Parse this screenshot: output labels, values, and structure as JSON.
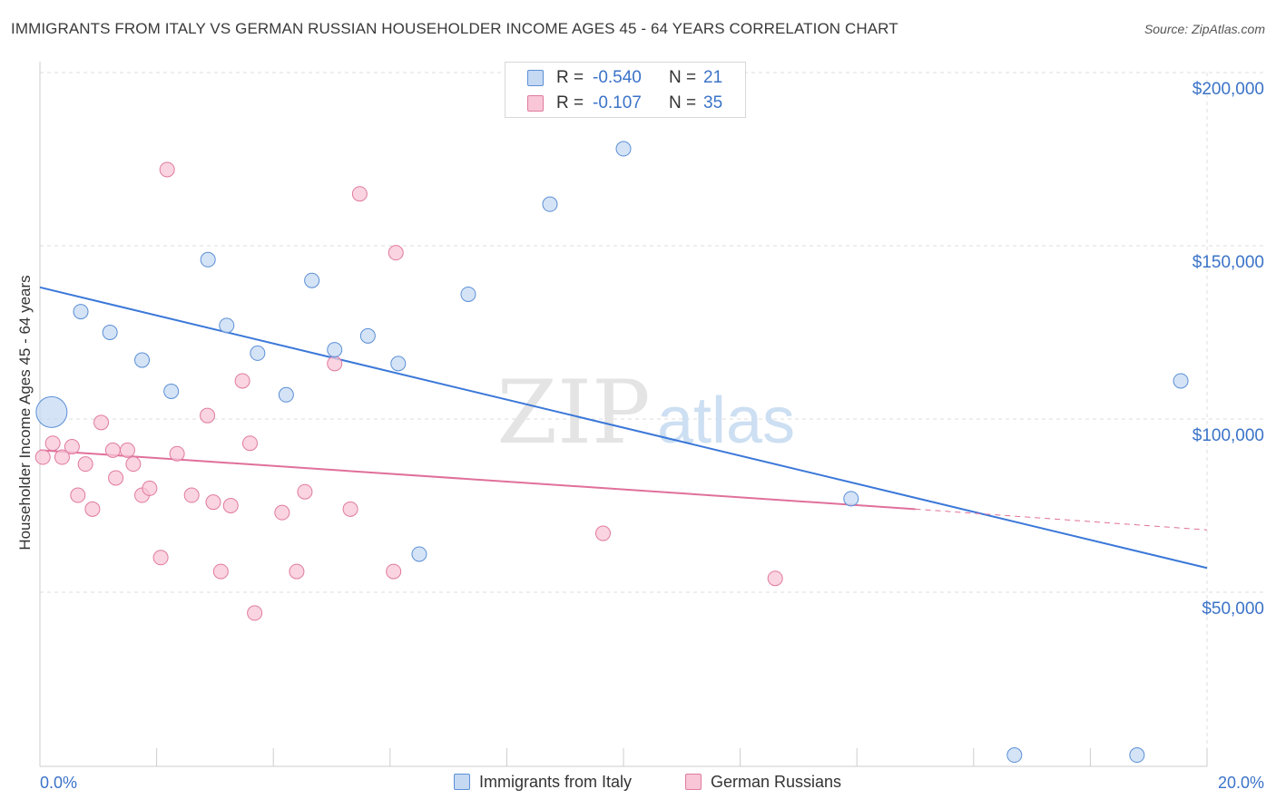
{
  "title": "IMMIGRANTS FROM ITALY VS GERMAN RUSSIAN HOUSEHOLDER INCOME AGES 45 - 64 YEARS CORRELATION CHART",
  "source": "Source: ZipAtlas.com",
  "watermark": {
    "zip": "ZIP",
    "atlas": "atlas"
  },
  "legend_stats": [
    {
      "r_label": "R =",
      "r_value": "-0.540",
      "n_label": "N =",
      "n_value": "21"
    },
    {
      "r_label": "R =",
      "r_value": "-0.107",
      "n_label": "N =",
      "n_value": "35"
    }
  ],
  "chart_data": {
    "type": "scatter",
    "title": "IMMIGRANTS FROM ITALY VS GERMAN RUSSIAN HOUSEHOLDER INCOME AGES 45 - 64 YEARS CORRELATION CHART",
    "xlabel": "",
    "ylabel": "Householder Income Ages 45 - 64 years",
    "xlim": [
      0,
      20
    ],
    "ylim": [
      0,
      205000
    ],
    "x_tick_labels": [
      "0.0%",
      "20.0%"
    ],
    "x_tick_values": [
      0,
      20
    ],
    "y_ticks": [
      {
        "value": 50000,
        "label": "$50,000"
      },
      {
        "value": 100000,
        "label": "$100,000"
      },
      {
        "value": 150000,
        "label": "$150,000"
      },
      {
        "value": 200000,
        "label": "$200,000"
      }
    ],
    "grid": true,
    "legend_placement": "bottom",
    "series": [
      {
        "name": "Immigrants from Italy",
        "color": "#5b8fd6",
        "fill": "#c5d9f3",
        "points": [
          {
            "x": 0.2,
            "y": 102000,
            "big": true
          },
          {
            "x": 0.7,
            "y": 131000
          },
          {
            "x": 1.2,
            "y": 125000
          },
          {
            "x": 1.75,
            "y": 117000
          },
          {
            "x": 2.25,
            "y": 108000
          },
          {
            "x": 2.88,
            "y": 146000
          },
          {
            "x": 3.2,
            "y": 127000
          },
          {
            "x": 3.73,
            "y": 119000
          },
          {
            "x": 4.22,
            "y": 107000
          },
          {
            "x": 4.66,
            "y": 140000
          },
          {
            "x": 5.05,
            "y": 120000
          },
          {
            "x": 5.62,
            "y": 124000
          },
          {
            "x": 6.14,
            "y": 116000
          },
          {
            "x": 6.5,
            "y": 61000
          },
          {
            "x": 7.34,
            "y": 136000
          },
          {
            "x": 8.74,
            "y": 162000
          },
          {
            "x": 10.0,
            "y": 178000
          },
          {
            "x": 13.9,
            "y": 77000
          },
          {
            "x": 16.7,
            "y": 3000
          },
          {
            "x": 18.8,
            "y": 3000
          },
          {
            "x": 19.55,
            "y": 111000
          }
        ],
        "trend": {
          "x0": 0,
          "y0": 138000,
          "x1": 20,
          "y1": 57000
        }
      },
      {
        "name": "German Russians",
        "color": "#e07aa0",
        "fill": "#f8c6d6",
        "points": [
          {
            "x": 0.05,
            "y": 89000
          },
          {
            "x": 0.22,
            "y": 93000
          },
          {
            "x": 0.38,
            "y": 89000
          },
          {
            "x": 0.55,
            "y": 92000
          },
          {
            "x": 0.65,
            "y": 78000
          },
          {
            "x": 0.78,
            "y": 87000
          },
          {
            "x": 0.9,
            "y": 74000
          },
          {
            "x": 1.05,
            "y": 99000
          },
          {
            "x": 1.25,
            "y": 91000
          },
          {
            "x": 1.3,
            "y": 83000
          },
          {
            "x": 1.5,
            "y": 91000
          },
          {
            "x": 1.6,
            "y": 87000
          },
          {
            "x": 1.75,
            "y": 78000
          },
          {
            "x": 1.88,
            "y": 80000
          },
          {
            "x": 2.07,
            "y": 60000
          },
          {
            "x": 2.18,
            "y": 172000
          },
          {
            "x": 2.35,
            "y": 90000
          },
          {
            "x": 2.6,
            "y": 78000
          },
          {
            "x": 2.87,
            "y": 101000
          },
          {
            "x": 2.97,
            "y": 76000
          },
          {
            "x": 3.1,
            "y": 56000
          },
          {
            "x": 3.27,
            "y": 75000
          },
          {
            "x": 3.47,
            "y": 111000
          },
          {
            "x": 3.6,
            "y": 93000
          },
          {
            "x": 3.68,
            "y": 44000
          },
          {
            "x": 4.15,
            "y": 73000
          },
          {
            "x": 4.4,
            "y": 56000
          },
          {
            "x": 4.54,
            "y": 79000
          },
          {
            "x": 5.05,
            "y": 116000
          },
          {
            "x": 5.32,
            "y": 74000
          },
          {
            "x": 5.48,
            "y": 165000
          },
          {
            "x": 6.06,
            "y": 56000
          },
          {
            "x": 6.1,
            "y": 148000
          },
          {
            "x": 9.65,
            "y": 67000
          },
          {
            "x": 12.6,
            "y": 54000
          }
        ],
        "trend": {
          "x0": 0,
          "y0": 91000,
          "x1": 15,
          "y1": 74000
        },
        "trend_extension": {
          "x0": 15,
          "y0": 74000,
          "x1": 20,
          "y1": 68000
        }
      }
    ]
  }
}
